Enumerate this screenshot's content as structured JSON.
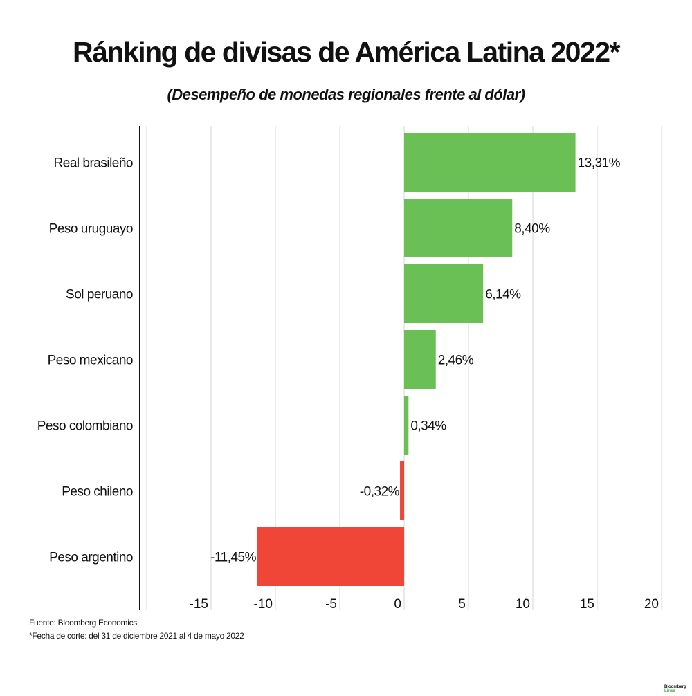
{
  "chart_data": {
    "type": "bar",
    "orientation": "horizontal",
    "title": "Ránking de divisas de América Latina 2022*",
    "subtitle": "(Desempeño de monedas regionales frente al dólar)",
    "categories": [
      "Real brasileño",
      "Peso uruguayo",
      "Sol peruano",
      "Peso mexicano",
      "Peso colombiano",
      "Peso chileno",
      "Peso argentino"
    ],
    "values": [
      13.31,
      8.4,
      6.14,
      2.46,
      0.34,
      -0.32,
      -11.45
    ],
    "data_labels": [
      "13,31%",
      "8,40%",
      "6,14%",
      "2,46%",
      "0,34%",
      "-0,32%",
      "-11,45%"
    ],
    "xlim": [
      -20,
      20
    ],
    "ticks": [
      -20,
      -15,
      -10,
      -5,
      0,
      5,
      10,
      15,
      20
    ],
    "tick_labels": [
      "",
      "-15",
      "-10",
      "-5",
      "0",
      "5",
      "10",
      "15",
      "20"
    ],
    "grid": true,
    "colors": {
      "positive": "#6abf55",
      "negative": "#ef4638"
    }
  },
  "footnotes": {
    "source": "Fuente: Bloomberg Economics",
    "note": "*Fecha de corte: del 31 de diciembre 2021 al 4 de mayo 2022"
  },
  "logo": {
    "line1": "Bloomberg",
    "line2": "Línea"
  }
}
